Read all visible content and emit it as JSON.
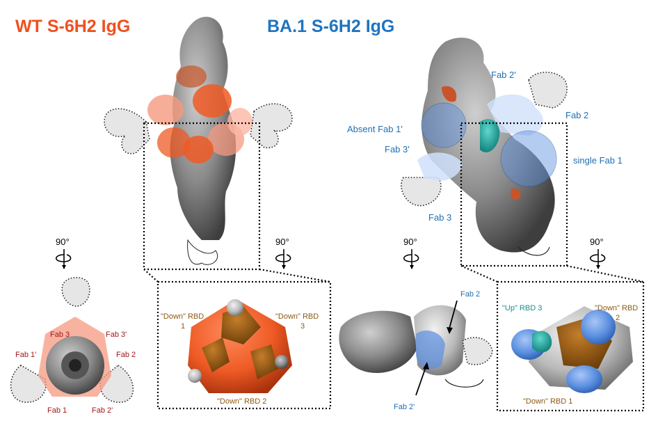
{
  "titles": {
    "wt": "WT S-6H2 IgG",
    "ba1": "BA.1 S-6H2 IgG"
  },
  "colors": {
    "wt_accent": "#f0501e",
    "ba1_accent": "#1f74c0",
    "fab_label_red": "#a3161b",
    "fab_label_blue": "#1f6fb4",
    "rbd_down": "#8a5a12",
    "rbd_up": "#128f8a",
    "rbd_orange": "#ee5a24",
    "fab_blue": "#5b8fe0",
    "spike_gray": "#7a7a7a"
  },
  "rotation": {
    "label_1": "90°",
    "label_2": "90°",
    "label_3": "90°",
    "label_4": "90°"
  },
  "wt_side": {
    "fabs": []
  },
  "wt_top": {
    "fab3": "Fab 3",
    "fab3p": "Fab 3'",
    "fab1p": "Fab 1'",
    "fab2": "Fab 2",
    "fab1": "Fab 1",
    "fab2p": "Fab 2'"
  },
  "wt_zoom": {
    "rbd1_line1": "\"Down\" RBD",
    "rbd1_line2": "1",
    "rbd3_line1": "\"Down\" RBD",
    "rbd3_line2": "3",
    "rbd2": "\"Down\" RBD 2"
  },
  "ba1_side": {
    "fab2p": "Fab 2'",
    "fab2": "Fab 2",
    "absent_fab1p": "Absent Fab 1'",
    "fab3p": "Fab 3'",
    "single_fab1": "single Fab 1",
    "fab3": "Fab 3"
  },
  "ba1_top": {
    "fab2": "Fab 2",
    "fab2p": "Fab 2'"
  },
  "ba1_zoom": {
    "up_rbd3": "\"Up\" RBD 3",
    "rbd2_line1": "\"Down\" RBD",
    "rbd2_line2": "2",
    "rbd1": "\"Down\" RBD 1"
  }
}
